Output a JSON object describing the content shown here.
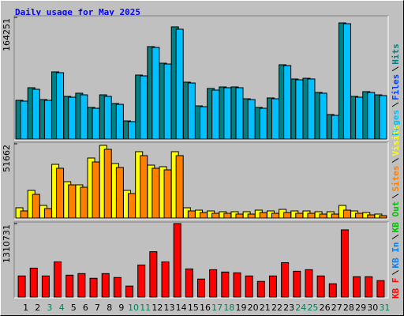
{
  "chart_data": [
    {
      "type": "bar",
      "title": "Daily usage for May 2025",
      "ylim": [
        0,
        164251
      ],
      "yticks": [
        164251
      ],
      "series": [
        {
          "name": "Pages",
          "color": "#00c0ff",
          "values": [
            51200,
            67200,
            52300,
            89600,
            56500,
            59700,
            41600,
            57600,
            46900,
            23500,
            85300,
            123700,
            101300,
            148300,
            75700,
            43700,
            66100,
            69300,
            69300,
            53300,
            41600,
            54400,
            99200,
            80000,
            81100,
            61900,
            32000,
            155700,
            56500,
            62900,
            58700
          ]
        },
        {
          "name": "Files",
          "color": "#0040ff"
        },
        {
          "name": "Hits",
          "color": "#008080",
          "values": [
            52300,
            69300,
            53300,
            90700,
            57600,
            61900,
            42700,
            59700,
            48000,
            24500,
            86400,
            124800,
            102400,
            151500,
            76800,
            44800,
            68300,
            70400,
            70400,
            54400,
            42700,
            55500,
            100300,
            81100,
            82100,
            62900,
            33100,
            156800,
            57600,
            64000,
            59700
          ]
        }
      ]
    },
    {
      "type": "bar",
      "ylim": [
        0,
        51662
      ],
      "yticks": [
        51662
      ],
      "series": [
        {
          "name": "Sites",
          "color": "#ff8000",
          "values": [
            4946,
            16488,
            6595,
            34625,
            23083,
            21434,
            39022,
            47815,
            35174,
            17038,
            43418,
            34625,
            33526,
            43418,
            4946,
            3847,
            3298,
            3298,
            2748,
            2748,
            3847,
            3298,
            3847,
            3298,
            3298,
            2748,
            2748,
            5496,
            3298,
            2198,
            1649
          ]
        },
        {
          "name": "Visits",
          "color": "#ffff00",
          "values": [
            7145,
            19236,
            8794,
            37373,
            25282,
            23083,
            41770,
            50563,
            37922,
            19236,
            46166,
            36823,
            35724,
            46166,
            7145,
            5496,
            4946,
            4397,
            4397,
            4397,
            5496,
            4946,
            6046,
            4946,
            4946,
            4397,
            4397,
            8794,
            4946,
            3847,
            2748
          ]
        }
      ]
    },
    {
      "type": "bar",
      "ylim": [
        0,
        1310731
      ],
      "yticks": [
        1310731
      ],
      "categories": [
        "1",
        "2",
        "3",
        "4",
        "5",
        "6",
        "7",
        "8",
        "9",
        "10",
        "11",
        "12",
        "13",
        "14",
        "15",
        "16",
        "17",
        "18",
        "19",
        "20",
        "21",
        "22",
        "23",
        "24",
        "25",
        "26",
        "27",
        "28",
        "29",
        "30",
        "31"
      ],
      "highlight_categories": [
        "3",
        "4",
        "10",
        "11",
        "17",
        "18",
        "24",
        "25",
        "31"
      ],
      "highlight_color": "#00805c",
      "series": [
        {
          "name": "KB F",
          "color": "#ff0000",
          "values": [
            376488,
            515928,
            376488,
            627480,
            390432,
            418320,
            334656,
            418320,
            348600,
            195216,
            571704,
            808752,
            627480,
            1310731,
            501984,
            320712,
            488040,
            446208,
            432264,
            376488,
            278880,
            376488,
            613536,
            460152,
            488040,
            376488,
            237048,
            1199184,
            362544,
            362544,
            292824
          ]
        },
        {
          "name": "KB In",
          "color": "#0080ff"
        },
        {
          "name": "KB Out",
          "color": "#00c000"
        }
      ]
    }
  ]
}
